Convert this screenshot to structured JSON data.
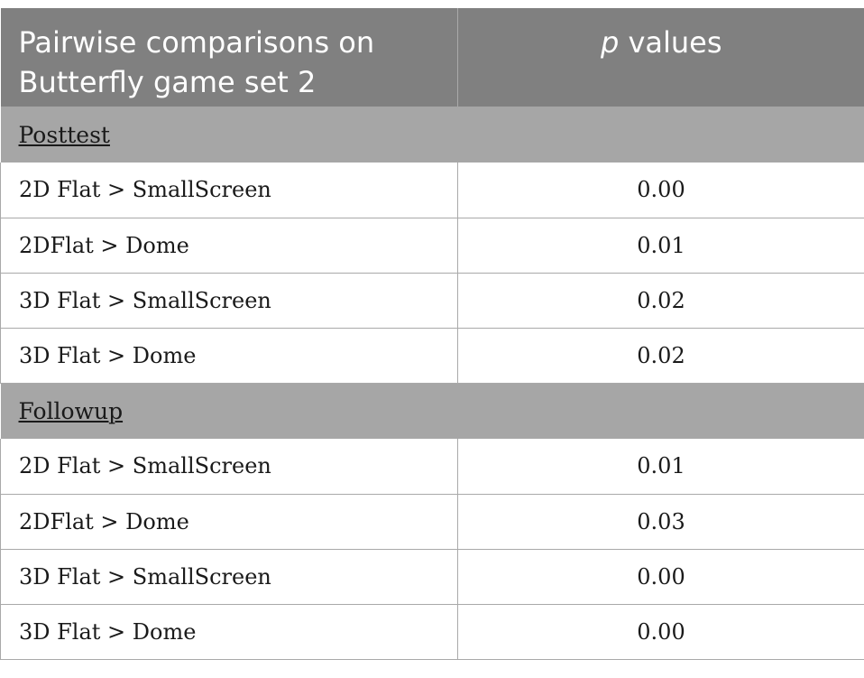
{
  "header": {
    "comparison_label": "Pairwise comparisons on Butterfly game set 2",
    "p_label": "p",
    "values_label": " values"
  },
  "sections": [
    {
      "title": "Posttest",
      "rows": [
        {
          "comparison": "2D Flat > SmallScreen",
          "p": "0.00"
        },
        {
          "comparison": "2DFlat > Dome",
          "p": "0.01"
        },
        {
          "comparison": "3D Flat > SmallScreen",
          "p": "0.02"
        },
        {
          "comparison": "3D Flat > Dome",
          "p": "0.02"
        }
      ]
    },
    {
      "title": "Followup",
      "rows": [
        {
          "comparison": "2D Flat > SmallScreen",
          "p": "0.01"
        },
        {
          "comparison": "2DFlat > Dome",
          "p": "0.03"
        },
        {
          "comparison": "3D Flat > SmallScreen",
          "p": "0.00"
        },
        {
          "comparison": "3D Flat > Dome",
          "p": "0.00"
        }
      ]
    }
  ]
}
